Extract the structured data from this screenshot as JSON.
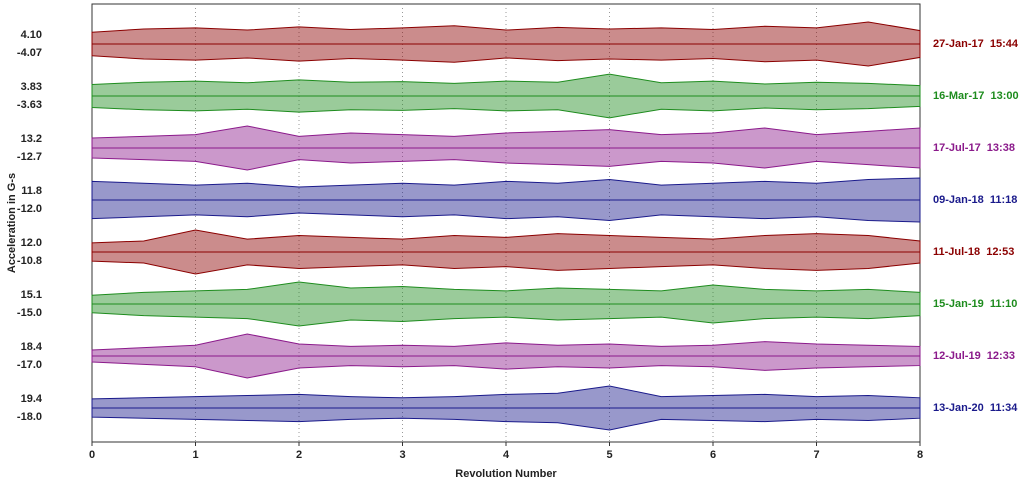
{
  "chart_data": {
    "type": "waterfall",
    "xlabel": "Revolution Number",
    "ylabel": "Acceleration in G-s",
    "xlim": [
      0,
      8
    ],
    "xticks": [
      0,
      1,
      2,
      3,
      4,
      5,
      6,
      7,
      8
    ],
    "grid": true,
    "x": [
      0,
      0.5,
      1,
      1.5,
      2,
      2.5,
      3,
      3.5,
      4,
      4.5,
      5,
      5.5,
      6,
      6.5,
      7,
      7.5,
      8
    ],
    "series": [
      {
        "name": "27-Jan-17  15:44",
        "color": "#8b0000",
        "max": {
          "value": 4.1,
          "label": "4.10"
        },
        "min": -4.07,
        "values": [
          2.2,
          2.8,
          3.0,
          2.6,
          3.2,
          2.7,
          3.0,
          3.4,
          2.6,
          3.1,
          2.8,
          3.0,
          2.7,
          3.3,
          3.0,
          4.1,
          2.5
        ]
      },
      {
        "name": "16-Mar-17  13:00",
        "color": "#1e8c1e",
        "max": 3.83,
        "min": -3.63,
        "values": [
          2.0,
          2.4,
          2.6,
          2.3,
          2.8,
          2.4,
          2.5,
          2.2,
          2.6,
          2.4,
          3.8,
          2.3,
          2.6,
          2.1,
          2.4,
          2.2,
          1.8
        ]
      },
      {
        "name": "17-Jul-17  13:38",
        "color": "#8b1a8b",
        "max": 13.2,
        "min": -12.7,
        "values": [
          6,
          7,
          8,
          13.2,
          7,
          9,
          8,
          7,
          9,
          10,
          11,
          8,
          9,
          12,
          8,
          10,
          12
        ]
      },
      {
        "name": "09-Jan-18  11:18",
        "color": "#1a1a8b",
        "max": 11.8,
        "min": {
          "value": -12,
          "label": "-12.0"
        },
        "values": [
          10,
          9,
          8,
          9,
          7,
          8,
          9,
          8,
          10,
          9,
          11,
          8,
          9,
          10,
          9,
          11,
          11.8
        ]
      },
      {
        "name": "11-Jul-18  12:53",
        "color": "#8b0000",
        "max": {
          "value": 12,
          "label": "12.0"
        },
        "min": -10.8,
        "values": [
          5,
          6,
          12,
          7,
          9,
          8,
          7,
          9,
          8,
          10,
          9,
          8,
          7,
          9,
          10,
          9,
          6
        ]
      },
      {
        "name": "15-Jan-19  11:10",
        "color": "#1e8c1e",
        "max": 15.1,
        "min": {
          "value": -15,
          "label": "-15.0"
        },
        "values": [
          6,
          8,
          9,
          10,
          15.1,
          11,
          12,
          10,
          9,
          11,
          10,
          9,
          13,
          10,
          9,
          10,
          8
        ]
      },
      {
        "name": "12-Jul-19  12:33",
        "color": "#8b1a8b",
        "max": 18.4,
        "min": {
          "value": -17,
          "label": "-17.0"
        },
        "values": [
          5,
          7,
          9,
          18.4,
          10,
          8,
          9,
          8,
          11,
          9,
          10,
          8,
          9,
          12,
          10,
          9,
          8
        ]
      },
      {
        "name": "13-Jan-20  11:34",
        "color": "#1a1a8b",
        "max": 19.4,
        "min": {
          "value": -18,
          "label": "-18.0"
        },
        "values": [
          8,
          9,
          10,
          11,
          12,
          10,
          9,
          10,
          12,
          13,
          19.4,
          10,
          11,
          12,
          10,
          11,
          9
        ]
      }
    ]
  }
}
